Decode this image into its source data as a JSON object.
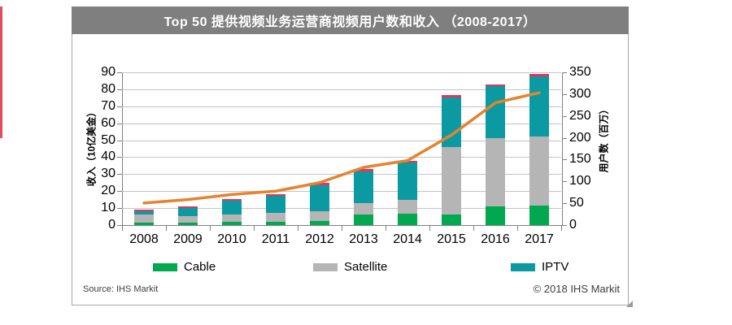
{
  "title": "Top 50 提供视频业务运营商视频用户数和收入 （2008-2017）",
  "footer": {
    "source": "Source: IHS Markit",
    "copyright": "© 2018 IHS Markit"
  },
  "chart_data": {
    "type": "bar",
    "subtype": "stacked-bars-with-line-overlay",
    "title": "Top 50 提供视频业务运营商视频用户数和收入 （2008-2017）",
    "categories": [
      "2008",
      "2009",
      "2010",
      "2011",
      "2012",
      "2013",
      "2014",
      "2015",
      "2016",
      "2017"
    ],
    "series": [
      {
        "name": "Cable",
        "axis": "right",
        "unit": "百万用户",
        "color": "#00A94F",
        "in_legend": true,
        "values": [
          6,
          5,
          8,
          8,
          9,
          25,
          26,
          25,
          43,
          45
        ]
      },
      {
        "name": "Satellite",
        "axis": "right",
        "unit": "百万用户",
        "color": "#B5B5B5",
        "in_legend": true,
        "values": [
          19,
          15,
          17,
          20,
          22,
          25,
          32,
          154,
          157,
          157
        ]
      },
      {
        "name": "IPTV",
        "axis": "right",
        "unit": "百万用户",
        "color": "#0B9AA2",
        "in_legend": true,
        "values": [
          6,
          20,
          30,
          39,
          61,
          73,
          85,
          113,
          118,
          138
        ]
      },
      {
        "name": "Unlabeled (red)",
        "axis": "right",
        "unit": "百万用户",
        "color": "#E3355C",
        "in_legend": false,
        "values": [
          5,
          2,
          4,
          3,
          5,
          5,
          4,
          5,
          4,
          7
        ]
      }
    ],
    "line_series": {
      "name": "收入",
      "axis": "left",
      "unit": "10亿美金",
      "color": "#E5832E",
      "values": [
        13,
        15,
        18,
        20,
        25,
        34,
        38,
        53,
        72,
        78
      ]
    },
    "left_axis": {
      "title": "收入（10亿美金）",
      "min": 0,
      "max": 90,
      "step": 10
    },
    "right_axis": {
      "title": "用户数（百万）",
      "min": 0,
      "max": 350,
      "step": 50
    },
    "x_axis": {
      "labels": [
        "2008",
        "2009",
        "2010",
        "2011",
        "2012",
        "2013",
        "2014",
        "2015",
        "2016",
        "2017"
      ]
    },
    "legend": {
      "position": "bottom",
      "entries": [
        "Cable",
        "Satellite",
        "IPTV"
      ]
    },
    "grid": true,
    "colors": {
      "titlebar": "#7F7F7F",
      "gridline": "#C3C3C3",
      "axis": "#808080",
      "accent_line": "#E5832E"
    }
  }
}
